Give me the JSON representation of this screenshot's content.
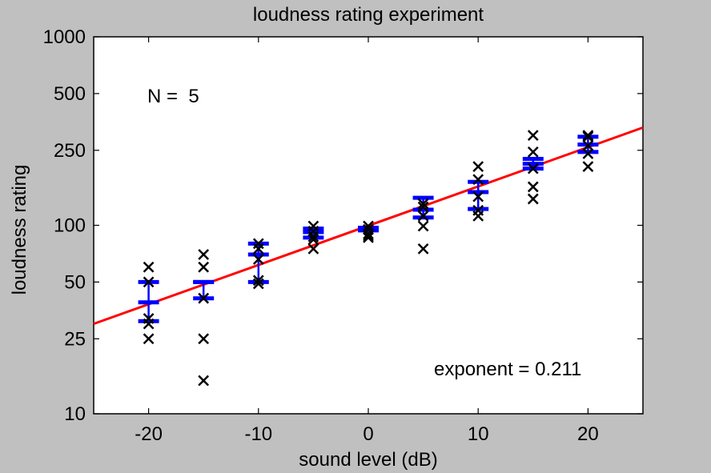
{
  "chart_data": {
    "type": "scatter",
    "title": "loudness rating experiment",
    "xlabel": "sound level (dB)",
    "ylabel": "loudness rating",
    "xlim": [
      -25,
      25
    ],
    "ylim": [
      10,
      1000
    ],
    "yscale": "log",
    "xticks": [
      -20,
      -10,
      0,
      10,
      20
    ],
    "xtick_labels": [
      "-20",
      "-10",
      "0",
      "10",
      "20"
    ],
    "yticks": [
      10,
      25,
      50,
      100,
      250,
      500,
      1000
    ],
    "ytick_labels": [
      "10",
      "25",
      "50",
      "100",
      "250",
      "500",
      "1000"
    ],
    "grid": false,
    "annotations": {
      "n_label": "N =  5",
      "exponent_label": "exponent = 0.211"
    },
    "colors": {
      "background": "#c0c0c0",
      "axes_bg": "#ffffff",
      "ratings": "#000000",
      "errorbars": "#0000ff",
      "fit": "#ff0000"
    },
    "ratings": {
      "marker": "x",
      "points": [
        {
          "x": -20,
          "y": 60
        },
        {
          "x": -20,
          "y": 50
        },
        {
          "x": -20,
          "y": 32
        },
        {
          "x": -20,
          "y": 30
        },
        {
          "x": -20,
          "y": 25
        },
        {
          "x": -15,
          "y": 70
        },
        {
          "x": -15,
          "y": 60
        },
        {
          "x": -15,
          "y": 41
        },
        {
          "x": -15,
          "y": 25
        },
        {
          "x": -15,
          "y": 15
        },
        {
          "x": -10,
          "y": 80
        },
        {
          "x": -10,
          "y": 75
        },
        {
          "x": -10,
          "y": 66
        },
        {
          "x": -10,
          "y": 51
        },
        {
          "x": -10,
          "y": 49
        },
        {
          "x": -5,
          "y": 99
        },
        {
          "x": -5,
          "y": 93
        },
        {
          "x": -5,
          "y": 87
        },
        {
          "x": -5,
          "y": 84
        },
        {
          "x": -5,
          "y": 75
        },
        {
          "x": 0,
          "y": 99
        },
        {
          "x": 0,
          "y": 95
        },
        {
          "x": 0,
          "y": 90
        },
        {
          "x": 0,
          "y": 88
        },
        {
          "x": 0,
          "y": 86
        },
        {
          "x": 5,
          "y": 130
        },
        {
          "x": 5,
          "y": 125
        },
        {
          "x": 5,
          "y": 112
        },
        {
          "x": 5,
          "y": 99
        },
        {
          "x": 5,
          "y": 75
        },
        {
          "x": 10,
          "y": 205
        },
        {
          "x": 10,
          "y": 175
        },
        {
          "x": 10,
          "y": 142
        },
        {
          "x": 10,
          "y": 120
        },
        {
          "x": 10,
          "y": 112
        },
        {
          "x": 15,
          "y": 300
        },
        {
          "x": 15,
          "y": 245
        },
        {
          "x": 15,
          "y": 200
        },
        {
          "x": 15,
          "y": 160
        },
        {
          "x": 15,
          "y": 138
        },
        {
          "x": 20,
          "y": 300
        },
        {
          "x": 20,
          "y": 295
        },
        {
          "x": 20,
          "y": 265
        },
        {
          "x": 20,
          "y": 240
        },
        {
          "x": 20,
          "y": 205
        }
      ]
    },
    "errorbars": {
      "points": [
        {
          "x": -20,
          "low": 31,
          "high": 50
        },
        {
          "x": -15,
          "low": 41,
          "high": 50
        },
        {
          "x": -10,
          "low": 50,
          "high": 80
        },
        {
          "x": -5,
          "low": 86,
          "high": 96
        },
        {
          "x": 0,
          "low": 94,
          "high": 97
        },
        {
          "x": 5,
          "low": 110,
          "high": 140
        },
        {
          "x": 10,
          "low": 122,
          "high": 170
        },
        {
          "x": 15,
          "low": 200,
          "high": 225
        },
        {
          "x": 20,
          "low": 245,
          "high": 295
        }
      ]
    },
    "means": [
      {
        "x": -20,
        "y": 39
      },
      {
        "x": -15,
        "y": 50
      },
      {
        "x": -10,
        "y": 70
      },
      {
        "x": -5,
        "y": 92
      },
      {
        "x": 0,
        "y": 96
      },
      {
        "x": 5,
        "y": 121
      },
      {
        "x": 10,
        "y": 150
      },
      {
        "x": 15,
        "y": 212
      },
      {
        "x": 20,
        "y": 268
      }
    ],
    "fit_line": {
      "points": [
        {
          "x": -25,
          "y": 30
        },
        {
          "x": 25,
          "y": 330
        }
      ]
    }
  }
}
